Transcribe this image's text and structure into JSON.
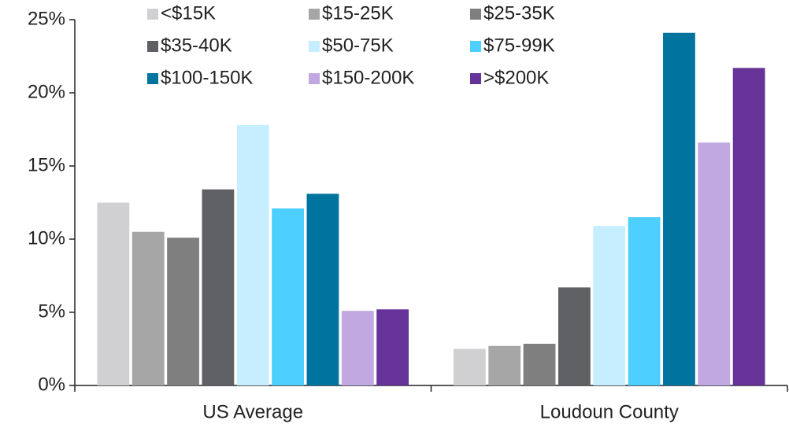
{
  "chart_data": {
    "type": "bar",
    "categories": [
      "US Average",
      "Loudoun County"
    ],
    "series": [
      {
        "name": "<$15K",
        "color": "#d0d0d2",
        "values": [
          12.5,
          2.5
        ]
      },
      {
        "name": "$15-25K",
        "color": "#a6a6a6",
        "values": [
          10.5,
          2.7
        ]
      },
      {
        "name": "$25-35K",
        "color": "#7f7f7f",
        "values": [
          10.1,
          2.85
        ]
      },
      {
        "name": "$35-40K",
        "color": "#5f6064",
        "values": [
          13.4,
          6.7
        ]
      },
      {
        "name": "$50-75K",
        "color": "#c6eeff",
        "values": [
          17.8,
          10.9
        ]
      },
      {
        "name": "$75-99K",
        "color": "#4dcfff",
        "values": [
          12.1,
          11.5
        ]
      },
      {
        "name": "$100-150K",
        "color": "#00739e",
        "values": [
          13.1,
          24.1
        ]
      },
      {
        "name": "$150-200K",
        "color": "#c2a8e0",
        "values": [
          5.1,
          16.6
        ]
      },
      {
        "name": ">$200K",
        "color": "#663399",
        "values": [
          5.2,
          21.7
        ]
      }
    ],
    "ylim": [
      0,
      25
    ],
    "yticks": [
      {
        "value": 0,
        "label": "0%"
      },
      {
        "value": 5,
        "label": "5%"
      },
      {
        "value": 10,
        "label": "10%"
      },
      {
        "value": 15,
        "label": "15%"
      },
      {
        "value": 20,
        "label": "20%"
      },
      {
        "value": 25,
        "label": "25%"
      }
    ],
    "grid": false,
    "legend": "top"
  }
}
